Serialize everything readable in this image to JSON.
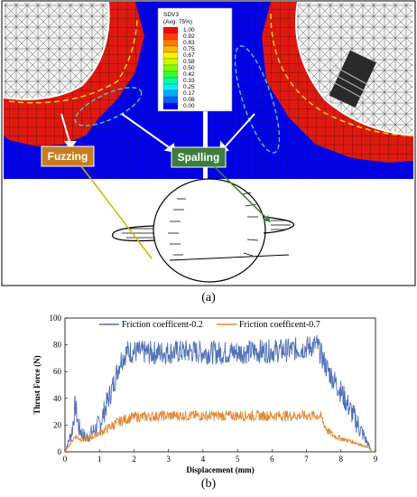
{
  "figure_a": {
    "legend": {
      "title": "SDV3",
      "subtitle": "(Avg: 75%)",
      "levels": [
        "1.00",
        "0.92",
        "0.83",
        "0.75",
        "0.67",
        "0.58",
        "0.50",
        "0.42",
        "0.33",
        "0.25",
        "0.17",
        "0.08",
        "0.00"
      ],
      "colors": [
        "#ff0000",
        "#ff3d00",
        "#ff7a00",
        "#ffb600",
        "#fff000",
        "#c8ff00",
        "#7dff00",
        "#33ff33",
        "#00ff9a",
        "#00f0ff",
        "#00a8ff",
        "#0060ff",
        "#0000ff"
      ]
    },
    "labels": {
      "fuzzing": "Fuzzing",
      "spalling": "Spalling"
    },
    "colors": {
      "mesh_blue": "#0000e6",
      "damage_red": "#dd1a10",
      "fuzzing_box": "#c87d23",
      "spalling_box": "#3d7d3d"
    }
  },
  "caption_a": "(a)",
  "caption_b": "(b)",
  "chart_data": {
    "type": "line",
    "xlabel": "Displacement (mm)",
    "ylabel": "Thrust Force (N)",
    "xlim": [
      0,
      9
    ],
    "ylim": [
      0,
      100
    ],
    "xticks": [
      "0",
      "1",
      "2",
      "3",
      "4",
      "5",
      "6",
      "7",
      "8",
      "9"
    ],
    "yticks": [
      "0",
      "20",
      "40",
      "60",
      "80",
      "100"
    ],
    "grid": false,
    "legend_position": "top",
    "series": [
      {
        "name": "Friction coefficent-0.2",
        "color": "#4f6fb5",
        "profile": {
          "x": [
            0,
            0.2,
            0.3,
            0.4,
            0.6,
            1.0,
            1.4,
            1.6,
            1.8,
            2.5,
            3.5,
            4.5,
            5.5,
            6.5,
            7.0,
            7.3,
            7.6,
            8.0,
            8.3,
            8.6,
            8.8,
            8.9
          ],
          "y": [
            0,
            15,
            35,
            18,
            10,
            20,
            50,
            68,
            75,
            74,
            75,
            74,
            75,
            76,
            78,
            80,
            62,
            45,
            30,
            15,
            5,
            0
          ]
        },
        "noise_amplitude": 9
      },
      {
        "name": "Friction coefficent-0.7",
        "color": "#e08a3a",
        "profile": {
          "x": [
            0,
            0.2,
            0.3,
            0.4,
            0.6,
            1.0,
            1.4,
            1.7,
            2.0,
            3.0,
            4.0,
            5.0,
            6.0,
            7.0,
            7.4,
            7.6,
            7.8,
            8.0,
            8.4,
            8.8,
            8.9
          ],
          "y": [
            0,
            8,
            12,
            10,
            9,
            14,
            20,
            24,
            26,
            27,
            27,
            27,
            27,
            27,
            27,
            16,
            12,
            10,
            7,
            3,
            0
          ]
        },
        "noise_amplitude": 4
      }
    ]
  }
}
